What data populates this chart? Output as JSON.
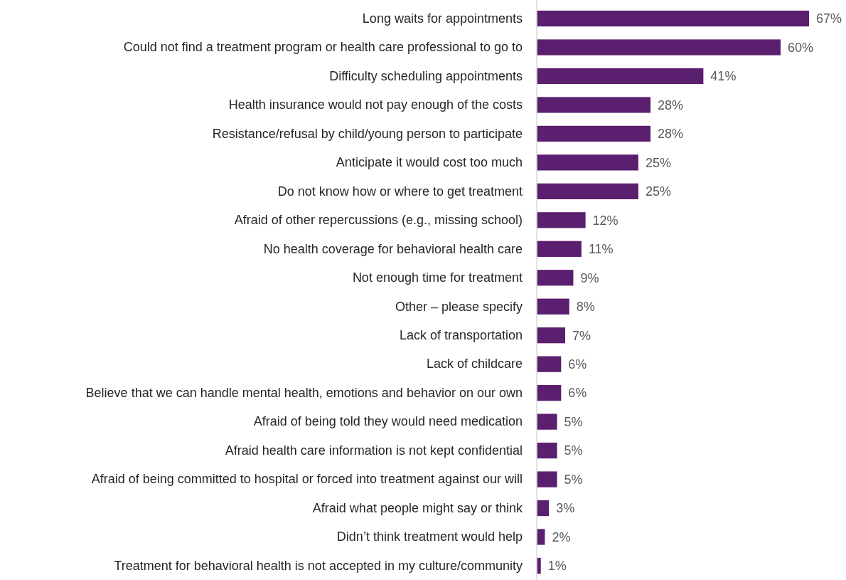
{
  "chart_data": {
    "type": "bar",
    "orientation": "horizontal",
    "categories": [
      "Long waits for appointments",
      "Could not find a treatment program or health care professional to go to",
      "Difficulty scheduling appointments",
      "Health insurance would not pay enough of the costs",
      "Resistance/refusal by child/young person to participate",
      "Anticipate it would cost too much",
      "Do not know how or where to get treatment",
      "Afraid of other repercussions (e.g., missing school)",
      "No health coverage for behavioral health care",
      "Not enough time for treatment",
      "Other – please specify",
      "Lack of transportation",
      "Lack of childcare",
      "Believe that we can handle mental health, emotions and behavior on our own",
      "Afraid of being told they would need medication",
      "Afraid health care information is not kept confidential",
      "Afraid of being committed to hospital or forced into treatment against our will",
      "Afraid what people might say or think",
      "Didn’t think treatment would help",
      "Treatment for behavioral health is not accepted in my culture/community"
    ],
    "values": [
      67,
      60,
      41,
      28,
      28,
      25,
      25,
      12,
      11,
      9,
      8,
      7,
      6,
      6,
      5,
      5,
      5,
      3,
      2,
      1
    ],
    "value_labels": [
      "67%",
      "60%",
      "41%",
      "28%",
      "28%",
      "25%",
      "25%",
      "12%",
      "11%",
      "9%",
      "8%",
      "7%",
      "6%",
      "6%",
      "5%",
      "5%",
      "5%",
      "3%",
      "2%",
      "1%"
    ],
    "color": "#5b1f6f",
    "grid": false
  }
}
